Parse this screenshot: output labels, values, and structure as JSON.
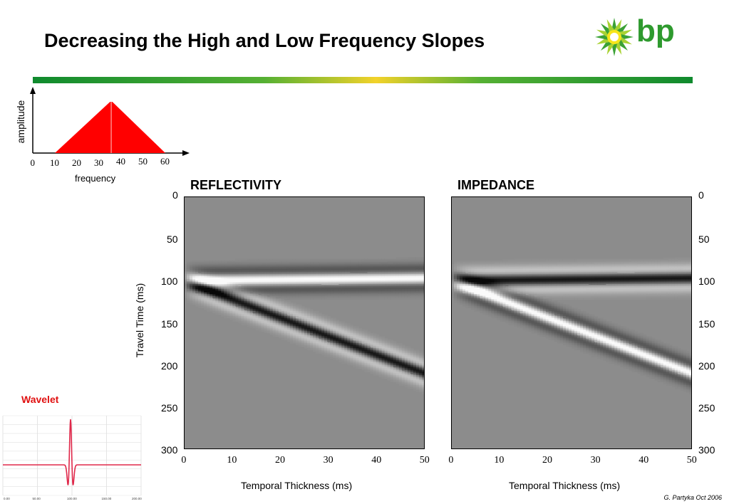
{
  "header": {
    "title": "Decreasing the High and Low Frequency Slopes",
    "logo_text": "bp"
  },
  "spectrum": {
    "ylabel": "amplitude",
    "xlabel": "frequency",
    "ticks": [
      "0",
      "10",
      "20",
      "30",
      "40",
      "50",
      "60"
    ],
    "tick_values": [
      0,
      10,
      20,
      30,
      40,
      50,
      60
    ],
    "shape_points": [
      [
        10,
        0
      ],
      [
        35,
        1
      ],
      [
        36,
        1
      ],
      [
        60,
        0
      ]
    ],
    "fill_color": "#ff0000"
  },
  "wavelet": {
    "title": "Wavelet",
    "x_ticks": [
      "0.00",
      "50.00",
      "100.00",
      "150.00",
      "200.00"
    ],
    "color": "#e0284a"
  },
  "chart_data": [
    {
      "type": "heatmap",
      "title": "REFLECTIVITY",
      "xlabel": "Temporal Thickness (ms)",
      "ylabel": "Travel Time (ms)",
      "xlim": [
        0,
        50
      ],
      "ylim": [
        300,
        0
      ],
      "x_ticks": [
        "0",
        "10",
        "20",
        "30",
        "40",
        "50"
      ],
      "y_ticks": [
        "0",
        "50",
        "100",
        "150",
        "200",
        "250",
        "300"
      ],
      "events": [
        {
          "name": "top",
          "t_start": 100,
          "t_end": 97,
          "polarity": -1
        },
        {
          "name": "base",
          "t_start": 100,
          "t_end": 210,
          "polarity": 1
        }
      ]
    },
    {
      "type": "heatmap",
      "title": "IMPEDANCE",
      "xlabel": "Temporal Thickness (ms)",
      "ylabel": "",
      "xlim": [
        0,
        50
      ],
      "ylim": [
        300,
        0
      ],
      "x_ticks": [
        "0",
        "10",
        "20",
        "30",
        "40",
        "50"
      ],
      "y_ticks": [
        "0",
        "50",
        "100",
        "150",
        "200",
        "250",
        "300"
      ],
      "events": [
        {
          "name": "top",
          "t_start": 100,
          "t_end": 97,
          "polarity": 1
        },
        {
          "name": "base",
          "t_start": 100,
          "t_end": 210,
          "polarity": -1
        }
      ]
    }
  ],
  "footer": {
    "credit": "G. Partyka Oct 2006"
  }
}
